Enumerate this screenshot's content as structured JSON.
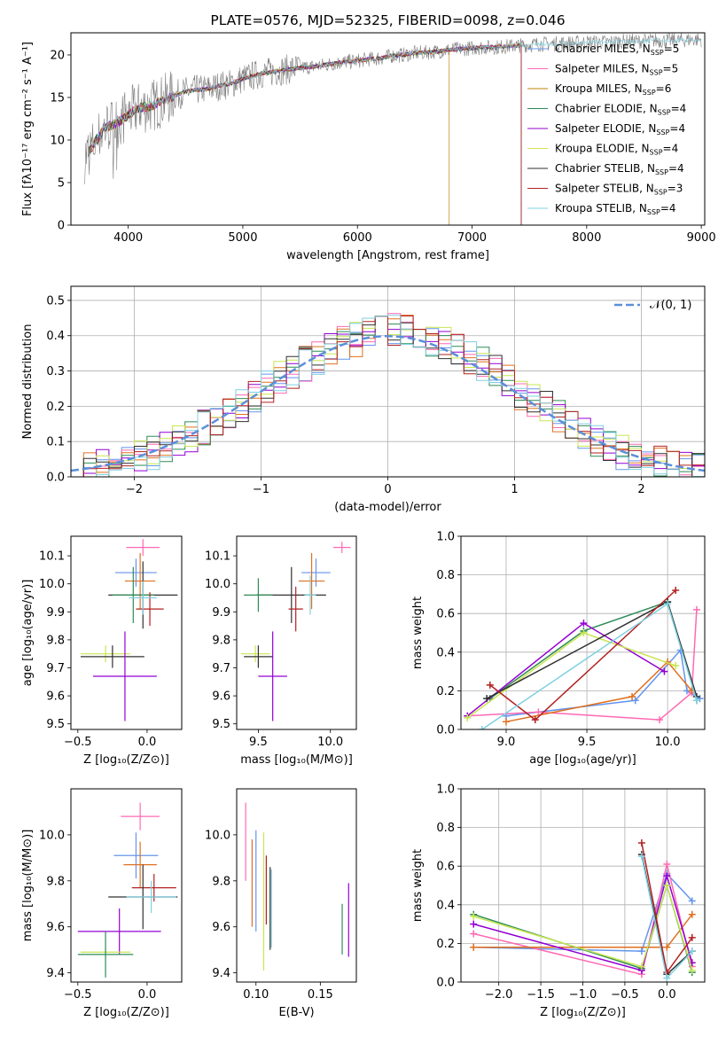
{
  "chart_data": [
    {
      "id": "spectrum",
      "type": "line",
      "title": "PLATE=0576, MJD=52325, FIBERID=0098, z=0.046",
      "xlabel": "wavelength [Angstrom, rest frame]",
      "ylabel": "Flux [fλ10⁻¹⁷ erg cm⁻² s⁻¹ A⁻¹]",
      "xlim": [
        3500,
        9030
      ],
      "ylim": [
        0,
        22.6
      ],
      "xticks": [
        4000,
        5000,
        6000,
        7000,
        8000,
        9000
      ],
      "yticks": [
        0,
        5,
        10,
        15,
        20
      ],
      "observed": {
        "x": [
          3620,
          3700,
          3800,
          3900,
          4000,
          4100,
          4200,
          4300,
          4400,
          4500,
          4600,
          4700,
          4800,
          4900,
          5000,
          5100,
          5200,
          5300,
          5400,
          5500,
          5600,
          5700,
          5800,
          5900,
          6000,
          6100,
          6200,
          6300,
          6400,
          6500,
          6600,
          6700,
          6800,
          6900,
          7000,
          7100,
          7200,
          7300,
          7400,
          7500,
          7600,
          7700,
          7800,
          7900,
          8000,
          8100,
          8200,
          8300,
          8400,
          8500,
          8600,
          8700,
          8800,
          8900,
          9000
        ],
        "y": [
          8.0,
          9.5,
          11.5,
          12.0,
          13.0,
          13.8,
          14.0,
          14.6,
          15.2,
          15.7,
          15.9,
          16.0,
          16.4,
          16.6,
          17.2,
          17.6,
          17.9,
          18.1,
          18.3,
          18.5,
          18.6,
          18.8,
          19.0,
          19.2,
          19.3,
          19.5,
          19.6,
          19.9,
          20.0,
          20.2,
          20.3,
          20.4,
          20.6,
          20.7,
          20.8,
          20.9,
          20.9,
          21.0,
          21.1,
          21.2,
          21.3,
          21.3,
          21.4,
          21.4,
          21.5,
          21.5,
          21.5,
          21.6,
          21.6,
          21.6,
          21.7,
          21.7,
          21.7,
          21.8,
          21.8
        ]
      },
      "series": [
        {
          "name": "Chabrier MILES, N<sub>SSP</sub>=5",
          "color": "#6495ed"
        },
        {
          "name": "Salpeter MILES, N<sub>SSP</sub>=5",
          "color": "#ff69b4"
        },
        {
          "name": "Kroupa MILES, N<sub>SSP</sub>=6",
          "color": "#b8860b"
        },
        {
          "name": "Chabrier ELODIE, N<sub>SSP</sub>=4",
          "color": "#2e8b57"
        },
        {
          "name": "Salpeter ELODIE, N<sub>SSP</sub>=4",
          "color": "#9400d3"
        },
        {
          "name": "Kroupa ELODIE, N<sub>SSP</sub>=4",
          "color": "#d4e157"
        },
        {
          "name": "Chabrier STELIB, N<sub>SSP</sub>=4",
          "color": "#303030"
        },
        {
          "name": "Salpeter STELIB, N<sub>SSP</sub>=3",
          "color": "#b22222"
        },
        {
          "name": "Kroupa STELIB, N<sub>SSP</sub>=4",
          "color": "#80d0e0"
        }
      ],
      "models_end": [
        7430,
        7430,
        6800,
        7430,
        7430,
        7430,
        7430,
        7430,
        9000
      ],
      "legend": "top-right"
    },
    {
      "id": "hist",
      "type": "line",
      "xlabel": "(data-model)/error",
      "ylabel": "Normed distribution",
      "xlim": [
        -2.5,
        2.5
      ],
      "ylim": [
        0,
        0.54
      ],
      "xticks": [
        -2,
        -1,
        0,
        1,
        2
      ],
      "yticks": [
        0.0,
        0.1,
        0.2,
        0.3,
        0.4,
        0.5
      ],
      "grid": true,
      "bin_width": 0.1,
      "bins_start": -2.5,
      "hist_base": [
        0.02,
        0.03,
        0.03,
        0.04,
        0.05,
        0.06,
        0.07,
        0.08,
        0.1,
        0.12,
        0.14,
        0.16,
        0.18,
        0.2,
        0.23,
        0.25,
        0.28,
        0.3,
        0.32,
        0.34,
        0.36,
        0.38,
        0.39,
        0.41,
        0.42,
        0.42,
        0.41,
        0.4,
        0.39,
        0.38,
        0.36,
        0.34,
        0.32,
        0.3,
        0.27,
        0.24,
        0.22,
        0.2,
        0.17,
        0.15,
        0.12,
        0.1,
        0.08,
        0.07,
        0.05,
        0.04,
        0.04,
        0.03,
        0.02,
        0.02
      ],
      "hist_colors": [
        "#6495ed",
        "#ff69b4",
        "#e07020",
        "#2e8b57",
        "#9400d3",
        "#c8e650",
        "#303030",
        "#b22222",
        "#80d0e0"
      ],
      "gaussian_name": "𝒩(0, 1)",
      "gaussian_color": "#5b8fd9",
      "legend": "top-right"
    },
    {
      "id": "errbar-age-z",
      "type": "scatter",
      "xlabel": "Z [log₁₀(Z/Z⊙)]",
      "ylabel": "age  [log₁₀(age/yr)]",
      "xlim": [
        -0.55,
        0.25
      ],
      "ylim": [
        9.48,
        10.17
      ],
      "xticks": [
        -0.5,
        0.0
      ],
      "yticks": [
        9.5,
        9.6,
        9.7,
        9.8,
        9.9,
        10.0,
        10.1
      ],
      "points": [
        {
          "x": -0.03,
          "y": 10.13,
          "xerr": 0.12,
          "yerr": 0.03,
          "color": "#ff69b4"
        },
        {
          "x": -0.08,
          "y": 10.04,
          "xerr": 0.15,
          "yerr": 0.05,
          "color": "#6495ed"
        },
        {
          "x": -0.05,
          "y": 10.01,
          "xerr": 0.11,
          "yerr": 0.1,
          "color": "#e07020"
        },
        {
          "x": -0.03,
          "y": 9.96,
          "xerr": 0.25,
          "yerr": 0.12,
          "color": "#303030"
        },
        {
          "x": -0.1,
          "y": 9.96,
          "xerr": 0.15,
          "yerr": 0.1,
          "color": "#2e8b57"
        },
        {
          "x": 0.02,
          "y": 9.91,
          "xerr": 0.1,
          "yerr": 0.06,
          "color": "#b22222"
        },
        {
          "x": -0.03,
          "y": 9.95,
          "xerr": 0.1,
          "yerr": 0.06,
          "color": "#80d0e0"
        },
        {
          "x": -0.3,
          "y": 9.75,
          "xerr": 0.18,
          "yerr": 0.03,
          "color": "#c8e650"
        },
        {
          "x": -0.25,
          "y": 9.74,
          "xerr": 0.23,
          "yerr": 0.04,
          "color": "#303030"
        },
        {
          "x": -0.16,
          "y": 9.67,
          "xerr": 0.23,
          "yerr": 0.16,
          "color": "#9400d3"
        }
      ]
    },
    {
      "id": "errbar-age-mass",
      "type": "scatter",
      "xlabel": "mass [log₁₀(M/M⊙)]",
      "ylabel": "",
      "xlim": [
        9.35,
        10.18
      ],
      "ylim": [
        9.48,
        10.17
      ],
      "xticks": [
        9.5,
        10.0
      ],
      "yticks": [
        9.5,
        9.6,
        9.7,
        9.8,
        9.9,
        10.0,
        10.1
      ],
      "points": [
        {
          "x": 10.08,
          "y": 10.13,
          "xerr": 0.06,
          "yerr": 0.02,
          "color": "#ff69b4"
        },
        {
          "x": 9.9,
          "y": 10.04,
          "xerr": 0.1,
          "yerr": 0.05,
          "color": "#6495ed"
        },
        {
          "x": 9.87,
          "y": 10.01,
          "xerr": 0.09,
          "yerr": 0.1,
          "color": "#e07020"
        },
        {
          "x": 9.73,
          "y": 9.96,
          "xerr": 0.24,
          "yerr": 0.1,
          "color": "#303030"
        },
        {
          "x": 9.5,
          "y": 9.96,
          "xerr": 0.1,
          "yerr": 0.06,
          "color": "#2e8b57"
        },
        {
          "x": 9.76,
          "y": 9.91,
          "xerr": 0.05,
          "yerr": 0.08,
          "color": "#b22222"
        },
        {
          "x": 9.86,
          "y": 9.96,
          "xerr": 0.04,
          "yerr": 0.07,
          "color": "#80d0e0"
        },
        {
          "x": 9.48,
          "y": 9.75,
          "xerr": 0.1,
          "yerr": 0.03,
          "color": "#c8e650"
        },
        {
          "x": 9.5,
          "y": 9.74,
          "xerr": 0.1,
          "yerr": 0.04,
          "color": "#303030"
        },
        {
          "x": 9.6,
          "y": 9.67,
          "xerr": 0.1,
          "yerr": 0.16,
          "color": "#9400d3"
        }
      ]
    },
    {
      "id": "weight-age",
      "type": "line",
      "xlabel": "age  [log₁₀(age/yr)]",
      "ylabel": "mass weight",
      "xlim": [
        8.72,
        10.23
      ],
      "ylim": [
        0,
        1.0
      ],
      "xticks": [
        9.0,
        9.5,
        10.0
      ],
      "yticks": [
        0.0,
        0.2,
        0.4,
        0.6,
        0.8,
        1.0
      ],
      "grid": true,
      "series": [
        {
          "color": "#6495ed",
          "x": [
            9.0,
            9.8,
            10.08,
            10.12,
            10.2
          ],
          "y": [
            0.07,
            0.15,
            0.41,
            0.2,
            0.16
          ]
        },
        {
          "color": "#ff69b4",
          "x": [
            8.76,
            9.2,
            9.95,
            10.15,
            10.18
          ],
          "y": [
            0.07,
            0.09,
            0.05,
            0.19,
            0.62
          ]
        },
        {
          "color": "#e07020",
          "x": [
            9.0,
            9.78,
            10.0,
            10.15
          ],
          "y": [
            0.04,
            0.17,
            0.35,
            0.2
          ]
        },
        {
          "color": "#2e8b57",
          "x": [
            8.9,
            9.48,
            10.0,
            10.18
          ],
          "y": [
            0.16,
            0.51,
            0.66,
            0.15
          ]
        },
        {
          "color": "#9400d3",
          "x": [
            8.76,
            9.48,
            9.98
          ],
          "y": [
            0.07,
            0.55,
            0.3
          ]
        },
        {
          "color": "#c8e650",
          "x": [
            8.76,
            9.48,
            10.05
          ],
          "y": [
            0.06,
            0.5,
            0.33
          ]
        },
        {
          "color": "#303030",
          "x": [
            8.88,
            10.0,
            10.18
          ],
          "y": [
            0.16,
            0.66,
            0.17
          ]
        },
        {
          "color": "#b22222",
          "x": [
            8.9,
            9.18,
            10.05
          ],
          "y": [
            0.23,
            0.05,
            0.72
          ]
        },
        {
          "color": "#80d0e0",
          "x": [
            8.85,
            10.0,
            10.18
          ],
          "y": [
            0.0,
            0.65,
            0.15
          ]
        }
      ]
    },
    {
      "id": "errbar-mass-z",
      "type": "scatter",
      "xlabel": "Z [log₁₀(Z/Z⊙)]",
      "ylabel": "mass [log₁₀(M/M⊙)]",
      "xlim": [
        -0.55,
        0.25
      ],
      "ylim": [
        9.36,
        10.2
      ],
      "xticks": [
        -0.5,
        0.0
      ],
      "yticks": [
        9.4,
        9.6,
        9.8,
        10.0
      ],
      "points": [
        {
          "x": -0.05,
          "y": 10.08,
          "xerr": 0.14,
          "yerr": 0.06,
          "color": "#ff69b4"
        },
        {
          "x": -0.08,
          "y": 9.91,
          "xerr": 0.16,
          "yerr": 0.1,
          "color": "#6495ed"
        },
        {
          "x": -0.05,
          "y": 9.87,
          "xerr": 0.12,
          "yerr": 0.1,
          "color": "#e07020"
        },
        {
          "x": 0.05,
          "y": 9.77,
          "xerr": 0.16,
          "yerr": 0.06,
          "color": "#b22222"
        },
        {
          "x": -0.03,
          "y": 9.73,
          "xerr": 0.25,
          "yerr": 0.14,
          "color": "#303030"
        },
        {
          "x": 0.03,
          "y": 9.73,
          "xerr": 0.18,
          "yerr": 0.07,
          "color": "#80d0e0"
        },
        {
          "x": -0.2,
          "y": 9.58,
          "xerr": 0.3,
          "yerr": 0.1,
          "color": "#9400d3"
        },
        {
          "x": -0.3,
          "y": 9.49,
          "xerr": 0.18,
          "yerr": 0.02,
          "color": "#c8e650"
        },
        {
          "x": -0.3,
          "y": 9.48,
          "xerr": 0.2,
          "yerr": 0.1,
          "color": "#2e8b57"
        }
      ]
    },
    {
      "id": "errbar-mass-ebv",
      "type": "scatter",
      "xlabel": "E(B-V)",
      "ylabel": "",
      "xlim": [
        0.085,
        0.178
      ],
      "ylim": [
        9.36,
        10.2
      ],
      "xticks": [
        0.1,
        0.15
      ],
      "yticks": [
        9.4,
        9.6,
        9.8,
        10.0
      ],
      "points": [
        {
          "x": 0.092,
          "y": 9.97,
          "xerr": 0,
          "yerr": 0.17,
          "color": "#ff69b4"
        },
        {
          "x": 0.097,
          "y": 9.79,
          "xerr": 0,
          "yerr": 0.19,
          "color": "#e07020"
        },
        {
          "x": 0.1,
          "y": 9.8,
          "xerr": 0,
          "yerr": 0.22,
          "color": "#6495ed"
        },
        {
          "x": 0.106,
          "y": 9.71,
          "xerr": 0,
          "yerr": 0.3,
          "color": "#c8e650"
        },
        {
          "x": 0.108,
          "y": 9.76,
          "xerr": 0,
          "yerr": 0.15,
          "color": "#b22222"
        },
        {
          "x": 0.111,
          "y": 9.68,
          "xerr": 0,
          "yerr": 0.18,
          "color": "#303030"
        },
        {
          "x": 0.112,
          "y": 9.68,
          "xerr": 0,
          "yerr": 0.17,
          "color": "#80d0e0"
        },
        {
          "x": 0.167,
          "y": 9.59,
          "xerr": 0,
          "yerr": 0.11,
          "color": "#2e8b57"
        },
        {
          "x": 0.172,
          "y": 9.63,
          "xerr": 0,
          "yerr": 0.16,
          "color": "#9400d3"
        }
      ]
    },
    {
      "id": "weight-z",
      "type": "line",
      "xlabel": "Z [log₁₀(Z/Z⊙)]",
      "ylabel": "mass weight",
      "xlim": [
        -2.45,
        0.45
      ],
      "ylim": [
        0,
        1.0
      ],
      "xticks": [
        -2.0,
        -1.5,
        -1.0,
        -0.5,
        0.0
      ],
      "yticks": [
        0.0,
        0.2,
        0.4,
        0.6,
        0.8,
        1.0
      ],
      "grid": true,
      "series": [
        {
          "color": "#6495ed",
          "x": [
            -2.3,
            -0.3,
            0.0,
            0.3
          ],
          "y": [
            0.18,
            0.16,
            0.56,
            0.42
          ]
        },
        {
          "color": "#ff69b4",
          "x": [
            -2.3,
            -0.3,
            0.0,
            0.3
          ],
          "y": [
            0.25,
            0.04,
            0.61,
            0.08
          ]
        },
        {
          "color": "#e07020",
          "x": [
            -2.3,
            0.0,
            0.3
          ],
          "y": [
            0.18,
            0.18,
            0.35
          ]
        },
        {
          "color": "#2e8b57",
          "x": [
            -2.3,
            -0.3,
            0.0,
            0.3
          ],
          "y": [
            0.35,
            0.07,
            0.5,
            0.05
          ]
        },
        {
          "color": "#9400d3",
          "x": [
            -2.3,
            -0.3,
            0.0,
            0.3
          ],
          "y": [
            0.3,
            0.06,
            0.55,
            0.1
          ]
        },
        {
          "color": "#c8e650",
          "x": [
            -2.3,
            -0.3,
            0.0,
            0.3
          ],
          "y": [
            0.34,
            0.08,
            0.5,
            0.06
          ]
        },
        {
          "color": "#303030",
          "x": [
            -0.3,
            0.0,
            0.3
          ],
          "y": [
            0.66,
            0.04,
            0.16
          ]
        },
        {
          "color": "#b22222",
          "x": [
            -0.3,
            0.0,
            0.3
          ],
          "y": [
            0.72,
            0.05,
            0.23
          ]
        },
        {
          "color": "#80d0e0",
          "x": [
            -0.3,
            0.0,
            0.3
          ],
          "y": [
            0.65,
            0.02,
            0.16
          ]
        }
      ]
    }
  ]
}
